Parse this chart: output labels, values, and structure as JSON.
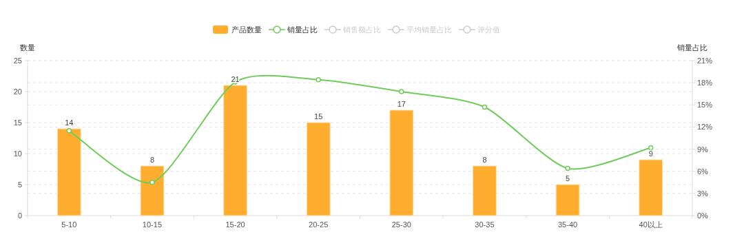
{
  "chart_data": {
    "type": "bar",
    "ylabel": "数量",
    "y2label": "销量占比",
    "categories": [
      "5-10",
      "10-15",
      "15-20",
      "20-25",
      "25-30",
      "30-35",
      "35-40",
      "40以上"
    ],
    "ylim": [
      0,
      25
    ],
    "yticks": [
      0,
      5,
      10,
      15,
      20,
      25
    ],
    "y2lim": [
      0,
      21
    ],
    "y2ticks": [
      {
        "value": 0,
        "label": "0%"
      },
      {
        "value": 3,
        "label": "3%"
      },
      {
        "value": 6,
        "label": "6%"
      },
      {
        "value": 9,
        "label": "9%"
      },
      {
        "value": 12,
        "label": "12%"
      },
      {
        "value": 15,
        "label": "15%"
      },
      {
        "value": 18,
        "label": "18%"
      },
      {
        "value": 21,
        "label": "21%"
      }
    ],
    "grid": true,
    "legend": "top",
    "marker": "circle",
    "line_style": "solid",
    "series": [
      {
        "name": "产品数量",
        "color": "#ffad2f",
        "values": [
          14,
          8,
          21,
          15,
          17,
          8,
          5,
          9
        ],
        "value_labels": [
          "14",
          "8",
          "21",
          "15",
          "17",
          "8",
          "5",
          "9"
        ]
      },
      {
        "name": "销量占比",
        "type": "line",
        "axis": "y2",
        "color": "#6fcc5a",
        "values": [
          11.5,
          4.5,
          18.1,
          18.4,
          16.8,
          14.7,
          6.4,
          9.2
        ]
      },
      {
        "name": "销售额占比",
        "type": "line",
        "axis": "y2",
        "color": "#cccccc",
        "values": [
          null,
          null,
          null,
          null,
          null,
          null,
          null,
          null
        ]
      },
      {
        "name": "平均销量占比",
        "type": "line",
        "axis": "y2",
        "color": "#cccccc",
        "values": [
          null,
          null,
          null,
          null,
          null,
          null,
          null,
          null
        ]
      },
      {
        "name": "评分值",
        "type": "line",
        "axis": "y2",
        "color": "#cccccc",
        "values": [
          null,
          null,
          null,
          null,
          null,
          null,
          null,
          null
        ]
      }
    ]
  }
}
